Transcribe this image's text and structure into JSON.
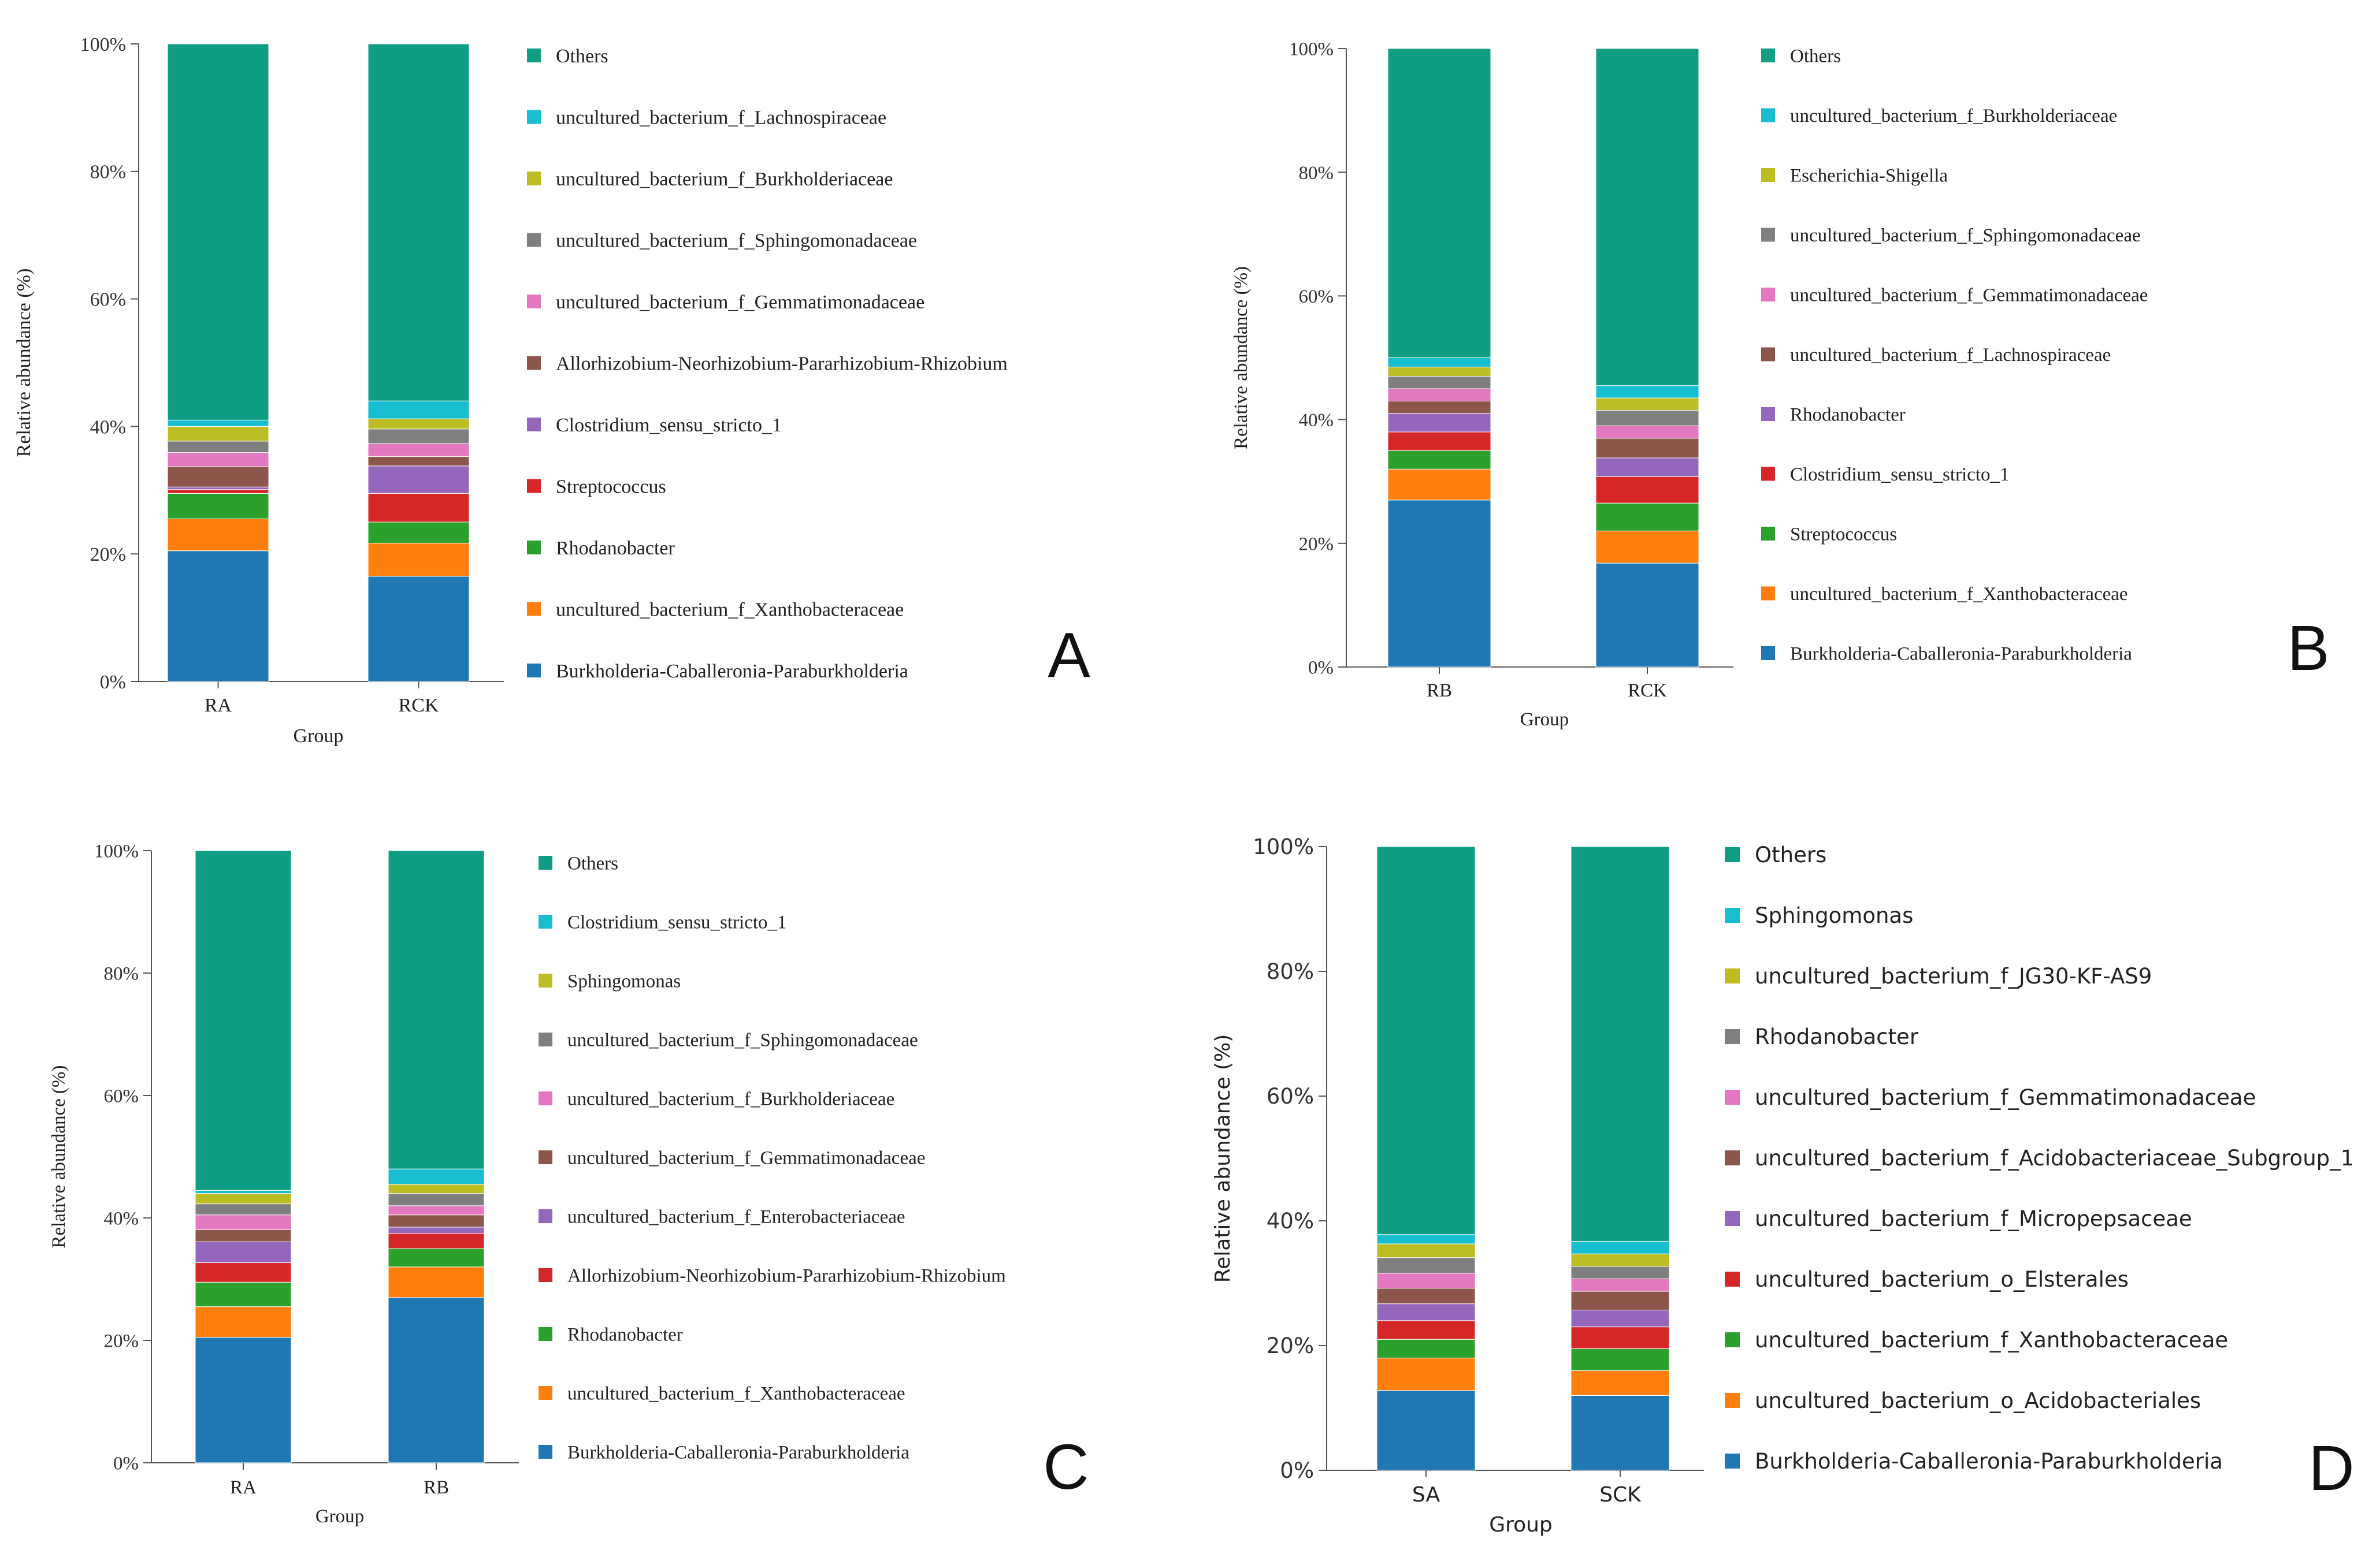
{
  "chart_data": [
    {
      "panel": "A",
      "type": "stacked-bar",
      "ylabel": "Relative abundance (%)",
      "xlabel": "Group",
      "ylim": [
        0,
        100
      ],
      "yticks": [
        "0%",
        "20%",
        "40%",
        "60%",
        "80%",
        "100%"
      ],
      "categories": [
        "RA",
        "RCK"
      ],
      "series": [
        {
          "name": "Burkholderia-Caballeronia-Paraburkholderia",
          "color": "#1f77b4",
          "values": [
            20.5,
            16.5
          ]
        },
        {
          "name": "uncultured_bacterium_f_Xanthobacteraceae",
          "color": "#ff7f0e",
          "values": [
            5.0,
            5.2
          ]
        },
        {
          "name": "Rhodanobacter",
          "color": "#2ca02c",
          "values": [
            4.0,
            3.3
          ]
        },
        {
          "name": "Streptococcus",
          "color": "#d62728",
          "values": [
            0.6,
            4.5
          ]
        },
        {
          "name": "Clostridium_sensu_stricto_1",
          "color": "#9467bd",
          "values": [
            0.4,
            4.3
          ]
        },
        {
          "name": "Allorhizobium-Neorhizobium-Pararhizobium-Rhizobium",
          "color": "#8c564b",
          "values": [
            3.2,
            1.5
          ]
        },
        {
          "name": "uncultured_bacterium_f_Gemmatimonadaceae",
          "color": "#e377c2",
          "values": [
            2.2,
            2.0
          ]
        },
        {
          "name": "uncultured_bacterium_f_Sphingomonadaceae",
          "color": "#7f7f7f",
          "values": [
            1.8,
            2.3
          ]
        },
        {
          "name": "uncultured_bacterium_f_Burkholderiaceae",
          "color": "#bcbd22",
          "values": [
            2.3,
            1.6
          ]
        },
        {
          "name": "uncultured_bacterium_f_Lachnospiraceae",
          "color": "#17becf",
          "values": [
            1.0,
            2.8
          ]
        },
        {
          "name": "Others",
          "color": "#0f9d83",
          "values": [
            59.0,
            56.0
          ]
        }
      ]
    },
    {
      "panel": "B",
      "type": "stacked-bar",
      "ylabel": "Relative abundance (%)",
      "xlabel": "Group",
      "ylim": [
        0,
        100
      ],
      "yticks": [
        "0%",
        "20%",
        "40%",
        "60%",
        "80%",
        "100%"
      ],
      "categories": [
        "RB",
        "RCK"
      ],
      "series": [
        {
          "name": "Burkholderia-Caballeronia-Paraburkholderia",
          "color": "#1f77b4",
          "values": [
            27.0,
            16.8
          ]
        },
        {
          "name": "uncultured_bacterium_f_Xanthobacteraceae",
          "color": "#ff7f0e",
          "values": [
            5.0,
            5.2
          ]
        },
        {
          "name": "Streptococcus",
          "color": "#2ca02c",
          "values": [
            3.0,
            4.5
          ]
        },
        {
          "name": "Clostridium_sensu_stricto_1",
          "color": "#d62728",
          "values": [
            3.0,
            4.3
          ]
        },
        {
          "name": "Rhodanobacter",
          "color": "#9467bd",
          "values": [
            3.0,
            3.0
          ]
        },
        {
          "name": "uncultured_bacterium_f_Lachnospiraceae",
          "color": "#8c564b",
          "values": [
            2.0,
            3.2
          ]
        },
        {
          "name": "uncultured_bacterium_f_Gemmatimonadaceae",
          "color": "#e377c2",
          "values": [
            2.0,
            2.0
          ]
        },
        {
          "name": "uncultured_bacterium_f_Sphingomonadaceae",
          "color": "#7f7f7f",
          "values": [
            2.0,
            2.5
          ]
        },
        {
          "name": "Escherichia-Shigella",
          "color": "#bcbd22",
          "values": [
            1.5,
            2.0
          ]
        },
        {
          "name": "uncultured_bacterium_f_Burkholderiaceae",
          "color": "#17becf",
          "values": [
            1.5,
            2.0
          ]
        },
        {
          "name": "Others",
          "color": "#0f9d83",
          "values": [
            50.0,
            54.5
          ]
        }
      ]
    },
    {
      "panel": "C",
      "type": "stacked-bar",
      "ylabel": "Relative abundance (%)",
      "xlabel": "Group",
      "ylim": [
        0,
        100
      ],
      "yticks": [
        "0%",
        "20%",
        "40%",
        "60%",
        "80%",
        "100%"
      ],
      "categories": [
        "RA",
        "RB"
      ],
      "series": [
        {
          "name": "Burkholderia-Caballeronia-Paraburkholderia",
          "color": "#1f77b4",
          "values": [
            20.5,
            27.0
          ]
        },
        {
          "name": "uncultured_bacterium_f_Xanthobacteraceae",
          "color": "#ff7f0e",
          "values": [
            5.0,
            5.0
          ]
        },
        {
          "name": "Rhodanobacter",
          "color": "#2ca02c",
          "values": [
            4.0,
            3.0
          ]
        },
        {
          "name": "Allorhizobium-Neorhizobium-Pararhizobium-Rhizobium",
          "color": "#d62728",
          "values": [
            3.2,
            2.5
          ]
        },
        {
          "name": "uncultured_bacterium_f_Enterobacteriaceae",
          "color": "#9467bd",
          "values": [
            3.4,
            1.0
          ]
        },
        {
          "name": "uncultured_bacterium_f_Gemmatimonadaceae",
          "color": "#8c564b",
          "values": [
            2.0,
            2.0
          ]
        },
        {
          "name": "uncultured_bacterium_f_Burkholderiaceae",
          "color": "#e377c2",
          "values": [
            2.4,
            1.5
          ]
        },
        {
          "name": "uncultured_bacterium_f_Sphingomonadaceae",
          "color": "#7f7f7f",
          "values": [
            1.8,
            2.0
          ]
        },
        {
          "name": "Sphingomonas",
          "color": "#bcbd22",
          "values": [
            1.7,
            1.5
          ]
        },
        {
          "name": "Clostridium_sensu_stricto_1",
          "color": "#17becf",
          "values": [
            0.5,
            2.5
          ]
        },
        {
          "name": "Others",
          "color": "#0f9d83",
          "values": [
            55.5,
            52.0
          ]
        }
      ]
    },
    {
      "panel": "D",
      "type": "stacked-bar",
      "ylabel": "Relative abundance (%)",
      "xlabel": "Group",
      "ylim": [
        0,
        100
      ],
      "yticks": [
        "0%",
        "20%",
        "40%",
        "60%",
        "80%",
        "100%"
      ],
      "categories": [
        "SA",
        "SCK"
      ],
      "series": [
        {
          "name": "Burkholderia-Caballeronia-Paraburkholderia",
          "color": "#1f77b4",
          "values": [
            12.8,
            12.0
          ]
        },
        {
          "name": "uncultured_bacterium_o_Acidobacteriales",
          "color": "#ff7f0e",
          "values": [
            5.2,
            4.0
          ]
        },
        {
          "name": "uncultured_bacterium_f_Xanthobacteraceae",
          "color": "#2ca02c",
          "values": [
            3.0,
            3.5
          ]
        },
        {
          "name": "uncultured_bacterium_o_Elsterales",
          "color": "#d62728",
          "values": [
            3.0,
            3.5
          ]
        },
        {
          "name": "uncultured_bacterium_f_Micropepsaceae",
          "color": "#9467bd",
          "values": [
            2.7,
            2.7
          ]
        },
        {
          "name": "uncultured_bacterium_f_Acidobacteriaceae_Subgroup_1",
          "color": "#8c564b",
          "values": [
            2.5,
            3.0
          ]
        },
        {
          "name": "uncultured_bacterium_f_Gemmatimonadaceae",
          "color": "#e377c2",
          "values": [
            2.4,
            2.0
          ]
        },
        {
          "name": "Rhodanobacter",
          "color": "#7f7f7f",
          "values": [
            2.5,
            2.0
          ]
        },
        {
          "name": "uncultured_bacterium_f_JG30-KF-AS9",
          "color": "#bcbd22",
          "values": [
            2.2,
            2.0
          ]
        },
        {
          "name": "Sphingomonas",
          "color": "#17becf",
          "values": [
            1.5,
            2.0
          ]
        },
        {
          "name": "Others",
          "color": "#0f9d83",
          "values": [
            62.2,
            63.3
          ]
        }
      ]
    }
  ],
  "panel_labels": [
    "A",
    "B",
    "C",
    "D"
  ]
}
